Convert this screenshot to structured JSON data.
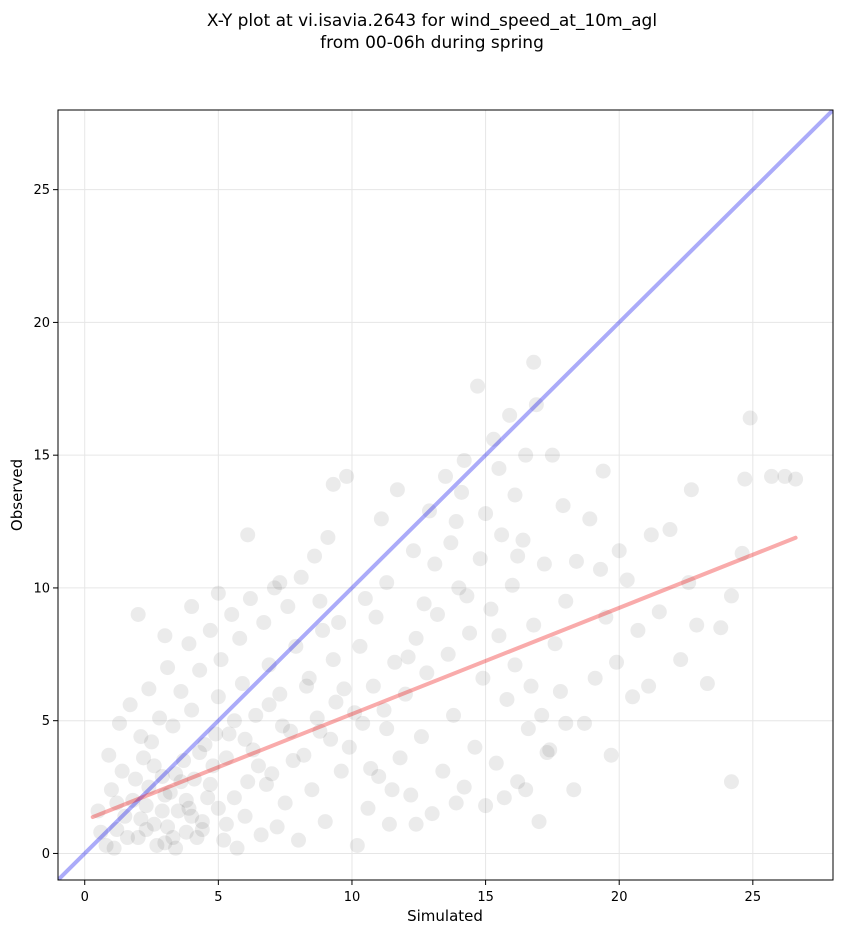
{
  "chart_data": {
    "type": "scatter",
    "title_lines": [
      "X-Y plot at vi.isavia.2643 for wind_speed_at_10m_agl",
      "from 00-06h during spring"
    ],
    "xlabel": "Simulated",
    "ylabel": "Observed",
    "xlim": [
      -1,
      28
    ],
    "ylim": [
      -1,
      28
    ],
    "xticks": [
      0,
      5,
      10,
      15,
      20,
      25
    ],
    "yticks": [
      0,
      5,
      10,
      15,
      20,
      25
    ],
    "grid": true,
    "legend": "none",
    "point_color": "#000000",
    "point_alpha": 0.08,
    "reference_line": {
      "name": "1:1",
      "color": "#0000ee",
      "slope": 1,
      "intercept": 0,
      "x_range": [
        -1,
        28
      ]
    },
    "regression_line": {
      "color": "#ee0000",
      "slope": 0.4,
      "intercept": 1.25,
      "x_range": [
        0.3,
        26.6
      ]
    },
    "points": [
      [
        0.8,
        0.3
      ],
      [
        1.2,
        0.9
      ],
      [
        1.5,
        1.4
      ],
      [
        2.0,
        0.6
      ],
      [
        2.3,
        1.8
      ],
      [
        2.6,
        1.1
      ],
      [
        3.0,
        0.4
      ],
      [
        3.2,
        2.3
      ],
      [
        3.5,
        1.6
      ],
      [
        3.8,
        0.8
      ],
      [
        4.1,
        2.8
      ],
      [
        4.4,
        1.2
      ],
      [
        4.8,
        3.3
      ],
      [
        5.2,
        0.5
      ],
      [
        5.6,
        2.1
      ],
      [
        6.0,
        1.4
      ],
      [
        6.3,
        3.9
      ],
      [
        6.8,
        2.6
      ],
      [
        7.2,
        1.0
      ],
      [
        7.7,
        4.6
      ],
      [
        1.0,
        2.4
      ],
      [
        1.4,
        3.1
      ],
      [
        1.8,
        2.0
      ],
      [
        2.2,
        3.6
      ],
      [
        2.5,
        4.2
      ],
      [
        2.9,
        2.9
      ],
      [
        3.3,
        4.8
      ],
      [
        3.7,
        3.5
      ],
      [
        4.0,
        5.4
      ],
      [
        4.5,
        4.1
      ],
      [
        5.0,
        5.9
      ],
      [
        5.4,
        4.5
      ],
      [
        5.9,
        6.4
      ],
      [
        6.4,
        5.2
      ],
      [
        6.9,
        7.1
      ],
      [
        7.3,
        6.0
      ],
      [
        7.9,
        7.8
      ],
      [
        8.4,
        6.6
      ],
      [
        8.9,
        8.4
      ],
      [
        9.3,
        7.3
      ],
      [
        0.5,
        1.6
      ],
      [
        0.9,
        3.7
      ],
      [
        1.3,
        4.9
      ],
      [
        1.7,
        5.6
      ],
      [
        2.1,
        4.4
      ],
      [
        2.4,
        6.2
      ],
      [
        2.8,
        5.1
      ],
      [
        3.1,
        7.0
      ],
      [
        3.6,
        6.1
      ],
      [
        3.9,
        7.9
      ],
      [
        4.3,
        6.9
      ],
      [
        4.7,
        8.4
      ],
      [
        5.1,
        7.3
      ],
      [
        5.5,
        9.0
      ],
      [
        5.8,
        8.1
      ],
      [
        6.2,
        9.6
      ],
      [
        6.7,
        8.7
      ],
      [
        7.1,
        10.0
      ],
      [
        7.6,
        9.3
      ],
      [
        8.1,
        10.4
      ],
      [
        2.0,
        9.0
      ],
      [
        3.0,
        8.2
      ],
      [
        4.0,
        9.3
      ],
      [
        5.0,
        9.8
      ],
      [
        6.1,
        12.0
      ],
      [
        7.3,
        10.2
      ],
      [
        8.6,
        11.2
      ],
      [
        9.1,
        11.9
      ],
      [
        9.8,
        14.2
      ],
      [
        9.3,
        13.9
      ],
      [
        10.2,
        0.3
      ],
      [
        10.6,
        1.7
      ],
      [
        11.0,
        2.9
      ],
      [
        11.4,
        1.1
      ],
      [
        11.8,
        3.6
      ],
      [
        12.2,
        2.2
      ],
      [
        12.6,
        4.4
      ],
      [
        13.0,
        1.5
      ],
      [
        13.4,
        3.1
      ],
      [
        13.8,
        5.2
      ],
      [
        14.2,
        2.5
      ],
      [
        14.6,
        4.0
      ],
      [
        15.0,
        1.8
      ],
      [
        15.4,
        3.4
      ],
      [
        15.8,
        5.8
      ],
      [
        16.2,
        2.7
      ],
      [
        16.6,
        4.7
      ],
      [
        17.0,
        1.2
      ],
      [
        17.4,
        3.9
      ],
      [
        17.8,
        6.1
      ],
      [
        10.4,
        4.9
      ],
      [
        10.8,
        6.3
      ],
      [
        11.2,
        5.4
      ],
      [
        11.6,
        7.2
      ],
      [
        12.0,
        6.0
      ],
      [
        12.4,
        8.1
      ],
      [
        12.8,
        6.8
      ],
      [
        13.2,
        9.0
      ],
      [
        13.6,
        7.5
      ],
      [
        14.0,
        10.0
      ],
      [
        14.4,
        8.3
      ],
      [
        14.8,
        11.1
      ],
      [
        15.2,
        9.2
      ],
      [
        15.6,
        12.0
      ],
      [
        16.0,
        10.1
      ],
      [
        16.4,
        11.8
      ],
      [
        16.8,
        8.6
      ],
      [
        17.2,
        10.9
      ],
      [
        17.6,
        7.9
      ],
      [
        18.0,
        9.5
      ],
      [
        10.5,
        9.6
      ],
      [
        11.1,
        12.6
      ],
      [
        11.7,
        13.7
      ],
      [
        12.3,
        11.4
      ],
      [
        12.9,
        12.9
      ],
      [
        13.5,
        14.2
      ],
      [
        14.1,
        13.6
      ],
      [
        14.7,
        17.6
      ],
      [
        15.3,
        15.6
      ],
      [
        15.9,
        16.5
      ],
      [
        16.5,
        15.0
      ],
      [
        16.9,
        16.9
      ],
      [
        16.8,
        18.5
      ],
      [
        15.5,
        14.5
      ],
      [
        14.2,
        14.8
      ],
      [
        13.9,
        12.5
      ],
      [
        16.1,
        13.5
      ],
      [
        17.5,
        15.0
      ],
      [
        16.2,
        11.2
      ],
      [
        15.0,
        12.8
      ],
      [
        18.3,
        2.4
      ],
      [
        18.7,
        4.9
      ],
      [
        19.1,
        6.6
      ],
      [
        19.5,
        8.9
      ],
      [
        19.9,
        7.2
      ],
      [
        20.3,
        10.3
      ],
      [
        20.7,
        8.4
      ],
      [
        21.1,
        6.3
      ],
      [
        21.5,
        9.1
      ],
      [
        21.9,
        12.2
      ],
      [
        22.3,
        7.3
      ],
      [
        22.6,
        10.2
      ],
      [
        22.9,
        8.6
      ],
      [
        23.3,
        6.4
      ],
      [
        23.8,
        8.5
      ],
      [
        24.2,
        9.7
      ],
      [
        24.2,
        2.7
      ],
      [
        24.6,
        11.3
      ],
      [
        24.7,
        14.1
      ],
      [
        24.9,
        16.4
      ],
      [
        25.7,
        14.2
      ],
      [
        26.2,
        14.2
      ],
      [
        26.6,
        14.1
      ],
      [
        21.2,
        12.0
      ],
      [
        22.7,
        13.7
      ],
      [
        19.4,
        14.4
      ],
      [
        20.0,
        11.4
      ],
      [
        18.9,
        12.6
      ],
      [
        19.3,
        10.7
      ],
      [
        20.5,
        5.9
      ],
      [
        17.9,
        13.1
      ],
      [
        18.4,
        11.0
      ],
      [
        19.7,
        3.7
      ],
      [
        18.0,
        4.9
      ],
      [
        17.3,
        3.8
      ],
      [
        16.5,
        2.4
      ],
      [
        15.7,
        2.1
      ],
      [
        13.9,
        1.9
      ],
      [
        12.4,
        1.1
      ],
      [
        11.5,
        2.4
      ],
      [
        0.6,
        0.8
      ],
      [
        1.1,
        0.2
      ],
      [
        1.6,
        0.6
      ],
      [
        2.1,
        1.3
      ],
      [
        2.7,
        0.3
      ],
      [
        3.1,
        1.0
      ],
      [
        3.4,
        0.2
      ],
      [
        3.9,
        1.7
      ],
      [
        4.2,
        0.6
      ],
      [
        4.6,
        2.1
      ],
      [
        5.3,
        1.1
      ],
      [
        5.7,
        0.2
      ],
      [
        6.1,
        2.7
      ],
      [
        6.6,
        0.7
      ],
      [
        7.0,
        3.0
      ],
      [
        7.5,
        1.9
      ],
      [
        8.0,
        0.5
      ],
      [
        8.5,
        2.4
      ],
      [
        9.0,
        1.2
      ],
      [
        9.6,
        3.1
      ],
      [
        1.9,
        2.8
      ],
      [
        2.3,
        0.9
      ],
      [
        2.6,
        3.3
      ],
      [
        3.0,
        2.2
      ],
      [
        3.3,
        0.6
      ],
      [
        3.6,
        2.7
      ],
      [
        4.0,
        1.4
      ],
      [
        4.3,
        3.8
      ],
      [
        4.7,
        2.6
      ],
      [
        5.0,
        1.7
      ],
      [
        8.2,
        3.7
      ],
      [
        8.7,
        5.1
      ],
      [
        9.2,
        4.3
      ],
      [
        9.7,
        6.2
      ],
      [
        10.1,
        5.3
      ],
      [
        10.3,
        7.8
      ],
      [
        10.9,
        8.9
      ],
      [
        11.3,
        10.2
      ],
      [
        9.5,
        8.7
      ],
      [
        8.8,
        9.5
      ],
      [
        12.1,
        7.4
      ],
      [
        12.7,
        9.4
      ],
      [
        13.1,
        10.9
      ],
      [
        13.7,
        11.7
      ],
      [
        14.3,
        9.7
      ],
      [
        14.9,
        6.6
      ],
      [
        15.5,
        8.2
      ],
      [
        16.1,
        7.1
      ],
      [
        16.7,
        6.3
      ],
      [
        17.1,
        5.2
      ],
      [
        1.2,
        1.9
      ],
      [
        2.4,
        2.5
      ],
      [
        2.9,
        1.6
      ],
      [
        3.4,
        3.0
      ],
      [
        3.8,
        2.0
      ],
      [
        4.4,
        0.9
      ],
      [
        4.9,
        4.5
      ],
      [
        5.3,
        3.6
      ],
      [
        5.6,
        5.0
      ],
      [
        6.0,
        4.3
      ],
      [
        6.5,
        3.3
      ],
      [
        6.9,
        5.6
      ],
      [
        7.4,
        4.8
      ],
      [
        7.8,
        3.5
      ],
      [
        8.3,
        6.3
      ],
      [
        8.8,
        4.6
      ],
      [
        9.4,
        5.7
      ],
      [
        9.9,
        4.0
      ],
      [
        10.7,
        3.2
      ],
      [
        11.3,
        4.7
      ]
    ]
  }
}
